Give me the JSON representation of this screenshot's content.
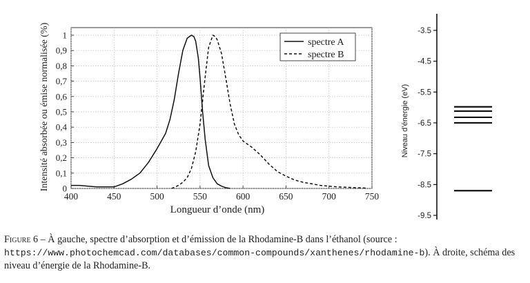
{
  "chart_data": [
    {
      "type": "line",
      "title": "",
      "xlabel": "Longueur d’onde (nm)",
      "ylabel": "Intensité absorbée ou émise normalisée (%)",
      "xlim": [
        400,
        750
      ],
      "ylim": [
        0,
        1.05
      ],
      "xticks": [
        "400",
        "450",
        "500",
        "550",
        "600",
        "650",
        "700",
        "750"
      ],
      "yticks": [
        "0",
        "0,1",
        "0,2",
        "0,3",
        "0,4",
        "0,5",
        "0,6",
        "0,7",
        "0,8",
        "0,9",
        "1"
      ],
      "grid": true,
      "legend_position": "top-right",
      "series": [
        {
          "name": "spectre A",
          "style": "solid",
          "color": "#111111",
          "x": [
            400,
            405,
            410,
            420,
            430,
            440,
            450,
            460,
            470,
            480,
            490,
            500,
            505,
            510,
            515,
            520,
            525,
            530,
            535,
            540,
            543,
            545,
            548,
            550,
            553,
            556,
            560,
            565,
            570,
            575,
            580,
            585
          ],
          "y": [
            0.02,
            0.02,
            0.02,
            0.015,
            0.01,
            0.01,
            0.01,
            0.03,
            0.06,
            0.1,
            0.17,
            0.26,
            0.31,
            0.36,
            0.45,
            0.58,
            0.75,
            0.9,
            0.98,
            1.0,
            0.99,
            0.96,
            0.85,
            0.72,
            0.5,
            0.32,
            0.15,
            0.07,
            0.03,
            0.015,
            0.005,
            0.0
          ]
        },
        {
          "name": "spectre B",
          "style": "dashed",
          "color": "#111111",
          "x": [
            517,
            525,
            530,
            535,
            540,
            545,
            550,
            555,
            560,
            565,
            568,
            570,
            575,
            580,
            585,
            590,
            595,
            600,
            610,
            620,
            630,
            640,
            650,
            660,
            670,
            680,
            690,
            700,
            710,
            720,
            730,
            740,
            745
          ],
          "y": [
            0.0,
            0.02,
            0.04,
            0.07,
            0.13,
            0.24,
            0.42,
            0.68,
            0.92,
            1.0,
            0.99,
            0.97,
            0.88,
            0.72,
            0.55,
            0.42,
            0.35,
            0.31,
            0.27,
            0.22,
            0.16,
            0.11,
            0.08,
            0.055,
            0.04,
            0.03,
            0.02,
            0.015,
            0.01,
            0.008,
            0.005,
            0.003,
            0.0
          ]
        }
      ]
    },
    {
      "type": "scatter",
      "title": "",
      "ylabel": "Niveau d’énergie (eV)",
      "ylim": [
        -9.5,
        -3.0
      ],
      "yticks": [
        "-3.5",
        "-4.5",
        "-5.5",
        "-6.5",
        "-7.5",
        "-8.5",
        "-9.5"
      ],
      "series": [
        {
          "name": "",
          "style": "energy-level",
          "y": [
            -5.98,
            -6.12,
            -6.32,
            -6.5,
            -8.7
          ]
        }
      ]
    }
  ],
  "caption": {
    "label": "Figure 6",
    "text_before": " – À gauche, spectre d’absorption et d’émission de la Rhodamine-B dans l’éthanol (source : ",
    "url": "https://www.photochemcad.com/databases/common-compounds/xanthenes/rhodamine-b",
    "text_after": "). À droite, schéma des niveau d’énergie de la Rhodamine-B."
  }
}
